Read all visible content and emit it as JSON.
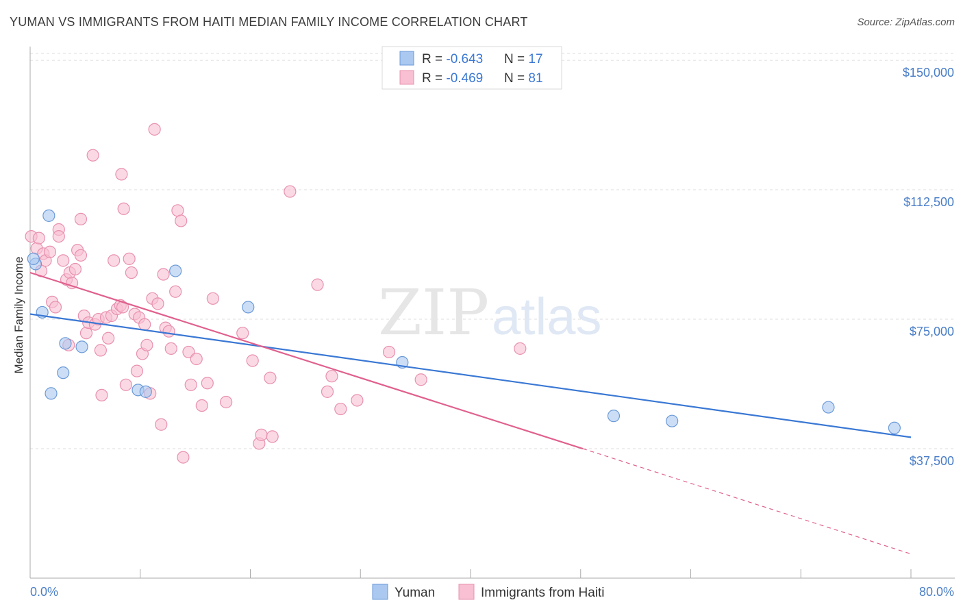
{
  "title": "YUMAN VS IMMIGRANTS FROM HAITI MEDIAN FAMILY INCOME CORRELATION CHART",
  "source": "Source: ZipAtlas.com",
  "watermark": {
    "zip": "ZIP",
    "atlas": "atlas"
  },
  "legend_stats": [
    {
      "r_label": "R = ",
      "r_value": "-0.643",
      "n_label": "N = ",
      "n_value": "17"
    },
    {
      "r_label": "R = ",
      "r_value": "-0.469",
      "n_label": "N = ",
      "n_value": "81"
    }
  ],
  "colors": {
    "yuman_fill": "#aac8f0",
    "yuman_stroke": "#6b9ad8",
    "yuman_line": "#3a78d4",
    "haiti_fill": "#f8c0d2",
    "haiti_stroke": "#e890ae",
    "haiti_line": "#e0608e",
    "tick_label": "#4a7ec8",
    "grid": "#dddddd"
  },
  "chart_data": {
    "type": "scatter",
    "title": "YUMAN VS IMMIGRANTS FROM HAITI MEDIAN FAMILY INCOME CORRELATION CHART",
    "xlabel": "",
    "ylabel": "Median Family Income",
    "xlim": [
      0,
      80
    ],
    "ylim": [
      0,
      152000
    ],
    "x_tick_labels": [
      "0.0%",
      "80.0%"
    ],
    "y_ticks": [
      37500,
      75000,
      112500,
      150000
    ],
    "y_tick_labels": [
      "$37,500",
      "$75,000",
      "$112,500",
      "$150,000"
    ],
    "grid": true,
    "legend_position": "bottom",
    "series": [
      {
        "name": "Yuman",
        "trend": {
          "x0": 0,
          "y0": 76500,
          "x1": 80,
          "y1": 40800
        },
        "points": [
          [
            0.5,
            91000
          ],
          [
            1.1,
            77000
          ],
          [
            1.7,
            105000
          ],
          [
            1.9,
            53500
          ],
          [
            3.0,
            59500
          ],
          [
            3.2,
            68000
          ],
          [
            4.7,
            67000
          ],
          [
            9.8,
            54500
          ],
          [
            10.5,
            54000
          ],
          [
            13.2,
            89000
          ],
          [
            19.8,
            78500
          ],
          [
            33.8,
            62500
          ],
          [
            53.0,
            47000
          ],
          [
            58.3,
            45500
          ],
          [
            72.5,
            49500
          ],
          [
            78.5,
            43500
          ],
          [
            0.3,
            92500
          ]
        ]
      },
      {
        "name": "Immigrants from Haiti",
        "trend": {
          "x0": 0,
          "y0": 88500,
          "x1": 50.2,
          "y1": 37500,
          "dash_x1": 80,
          "dash_y1": 7000
        },
        "points": [
          [
            0.1,
            99000
          ],
          [
            0.6,
            95500
          ],
          [
            0.8,
            98500
          ],
          [
            1.0,
            89000
          ],
          [
            1.2,
            94000
          ],
          [
            1.4,
            92000
          ],
          [
            1.8,
            94500
          ],
          [
            2.0,
            80000
          ],
          [
            2.3,
            78500
          ],
          [
            2.6,
            101000
          ],
          [
            2.6,
            99000
          ],
          [
            3.0,
            92000
          ],
          [
            3.3,
            86500
          ],
          [
            3.5,
            67500
          ],
          [
            3.6,
            88500
          ],
          [
            3.8,
            85500
          ],
          [
            4.1,
            89500
          ],
          [
            4.3,
            95000
          ],
          [
            4.6,
            104000
          ],
          [
            4.6,
            93500
          ],
          [
            4.9,
            76000
          ],
          [
            5.1,
            71000
          ],
          [
            5.3,
            74000
          ],
          [
            5.7,
            122500
          ],
          [
            5.9,
            73500
          ],
          [
            6.2,
            75000
          ],
          [
            6.4,
            66000
          ],
          [
            6.5,
            53000
          ],
          [
            6.9,
            75500
          ],
          [
            7.1,
            69500
          ],
          [
            7.4,
            76000
          ],
          [
            7.6,
            92000
          ],
          [
            7.9,
            78000
          ],
          [
            8.2,
            79000
          ],
          [
            8.3,
            117000
          ],
          [
            8.5,
            107000
          ],
          [
            8.7,
            56000
          ],
          [
            9.0,
            92500
          ],
          [
            9.2,
            88500
          ],
          [
            9.5,
            76500
          ],
          [
            9.7,
            60000
          ],
          [
            9.9,
            75500
          ],
          [
            10.2,
            65000
          ],
          [
            10.4,
            73500
          ],
          [
            10.6,
            67500
          ],
          [
            10.9,
            53500
          ],
          [
            11.1,
            81000
          ],
          [
            11.3,
            130000
          ],
          [
            11.6,
            79500
          ],
          [
            11.9,
            44500
          ],
          [
            12.1,
            88000
          ],
          [
            12.3,
            72500
          ],
          [
            12.6,
            71500
          ],
          [
            12.8,
            66500
          ],
          [
            13.2,
            83000
          ],
          [
            13.4,
            106500
          ],
          [
            13.7,
            103500
          ],
          [
            13.9,
            35000
          ],
          [
            14.4,
            65500
          ],
          [
            14.6,
            56000
          ],
          [
            15.1,
            63500
          ],
          [
            15.6,
            50000
          ],
          [
            16.1,
            56500
          ],
          [
            16.6,
            81000
          ],
          [
            17.8,
            51000
          ],
          [
            19.3,
            71000
          ],
          [
            20.2,
            63000
          ],
          [
            20.8,
            39000
          ],
          [
            21.0,
            41500
          ],
          [
            21.8,
            58000
          ],
          [
            23.6,
            112000
          ],
          [
            26.1,
            85000
          ],
          [
            27.0,
            54000
          ],
          [
            27.4,
            58500
          ],
          [
            28.2,
            49000
          ],
          [
            29.7,
            51500
          ],
          [
            32.6,
            65500
          ],
          [
            35.5,
            57500
          ],
          [
            44.5,
            66500
          ],
          [
            22.0,
            41000
          ],
          [
            8.4,
            78500
          ]
        ]
      }
    ]
  }
}
